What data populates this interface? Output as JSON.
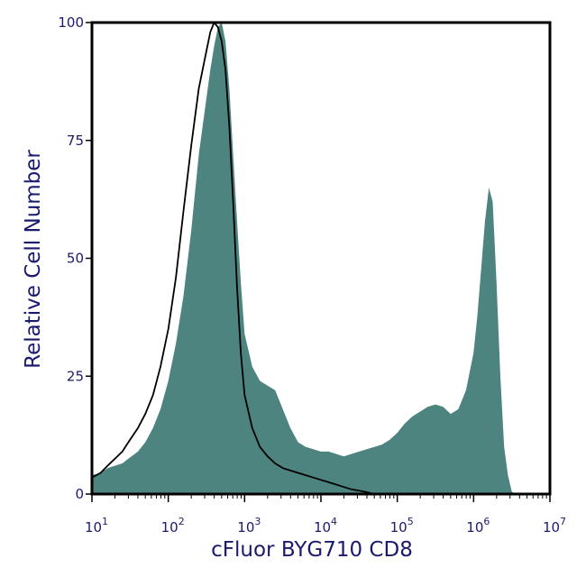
{
  "chart_data": {
    "type": "area",
    "title": "",
    "xlabel": "cFluor BYG710 CD8",
    "ylabel": "Relative Cell Number",
    "x_scale": "log",
    "xlim": [
      10,
      10000000
    ],
    "ylim": [
      0,
      100
    ],
    "x_tick_labels": [
      {
        "base": "10",
        "exp": "1"
      },
      {
        "base": "10",
        "exp": "2"
      },
      {
        "base": "10",
        "exp": "3"
      },
      {
        "base": "10",
        "exp": "4"
      },
      {
        "base": "10",
        "exp": "5"
      },
      {
        "base": "10",
        "exp": "6"
      },
      {
        "base": "10",
        "exp": "7"
      }
    ],
    "y_ticks": [
      "0",
      "25",
      "50",
      "75",
      "100"
    ],
    "grid": false,
    "legend": "none",
    "colors": {
      "filled": "#4e8480",
      "outline": "#000000",
      "frame": "#000000",
      "text": "#1a1a6e"
    },
    "series": [
      {
        "style": "filled",
        "points": [
          [
            10,
            4
          ],
          [
            13,
            4.5
          ],
          [
            16,
            5.5
          ],
          [
            20,
            6
          ],
          [
            25,
            6.5
          ],
          [
            30,
            7.5
          ],
          [
            40,
            9
          ],
          [
            50,
            11
          ],
          [
            63,
            14
          ],
          [
            79,
            18
          ],
          [
            100,
            24
          ],
          [
            126,
            32
          ],
          [
            158,
            42
          ],
          [
            200,
            56
          ],
          [
            251,
            72
          ],
          [
            316,
            84
          ],
          [
            355,
            90
          ],
          [
            398,
            95
          ],
          [
            447,
            99
          ],
          [
            501,
            100
          ],
          [
            562,
            96
          ],
          [
            631,
            86
          ],
          [
            708,
            72
          ],
          [
            794,
            58
          ],
          [
            891,
            45
          ],
          [
            1000,
            34
          ],
          [
            1259,
            27
          ],
          [
            1585,
            24
          ],
          [
            2000,
            23
          ],
          [
            2512,
            22
          ],
          [
            3162,
            18
          ],
          [
            3981,
            14
          ],
          [
            5012,
            11
          ],
          [
            6310,
            10
          ],
          [
            7943,
            9.5
          ],
          [
            10000,
            9
          ],
          [
            12589,
            9
          ],
          [
            15849,
            8.5
          ],
          [
            19953,
            8
          ],
          [
            25119,
            8.5
          ],
          [
            31623,
            9
          ],
          [
            39811,
            9.5
          ],
          [
            50119,
            10
          ],
          [
            63096,
            10.5
          ],
          [
            79433,
            11.5
          ],
          [
            100000,
            13
          ],
          [
            125893,
            15
          ],
          [
            158489,
            16.5
          ],
          [
            199526,
            17.5
          ],
          [
            251189,
            18.5
          ],
          [
            316228,
            19
          ],
          [
            398107,
            18.5
          ],
          [
            501187,
            17
          ],
          [
            630957,
            18
          ],
          [
            794328,
            22
          ],
          [
            1000000,
            30
          ],
          [
            1122018,
            38
          ],
          [
            1258925,
            48
          ],
          [
            1412538,
            58
          ],
          [
            1584893,
            65
          ],
          [
            1778279,
            62
          ],
          [
            1995262,
            45
          ],
          [
            2238721,
            25
          ],
          [
            2511886,
            10
          ],
          [
            2818383,
            4
          ],
          [
            3162278,
            0.5
          ],
          [
            3548134,
            0
          ]
        ]
      },
      {
        "style": "outline",
        "points": [
          [
            10,
            3.5
          ],
          [
            13,
            4.5
          ],
          [
            16,
            6
          ],
          [
            20,
            7.5
          ],
          [
            25,
            9
          ],
          [
            30,
            11
          ],
          [
            40,
            14
          ],
          [
            50,
            17
          ],
          [
            63,
            21
          ],
          [
            79,
            27
          ],
          [
            100,
            35
          ],
          [
            126,
            46
          ],
          [
            158,
            60
          ],
          [
            200,
            74
          ],
          [
            251,
            86
          ],
          [
            316,
            94
          ],
          [
            355,
            98
          ],
          [
            398,
            100
          ],
          [
            447,
            99
          ],
          [
            501,
            96
          ],
          [
            562,
            90
          ],
          [
            631,
            78
          ],
          [
            708,
            62
          ],
          [
            794,
            44
          ],
          [
            891,
            30
          ],
          [
            1000,
            21
          ],
          [
            1259,
            14
          ],
          [
            1585,
            10
          ],
          [
            2000,
            8
          ],
          [
            2512,
            6.5
          ],
          [
            3162,
            5.5
          ],
          [
            3981,
            5
          ],
          [
            5012,
            4.5
          ],
          [
            6310,
            4
          ],
          [
            7943,
            3.5
          ],
          [
            10000,
            3
          ],
          [
            12589,
            2.5
          ],
          [
            15849,
            2
          ],
          [
            19953,
            1.5
          ],
          [
            25119,
            1
          ],
          [
            31623,
            0.7
          ],
          [
            39811,
            0.4
          ],
          [
            50119,
            0
          ]
        ]
      }
    ]
  }
}
